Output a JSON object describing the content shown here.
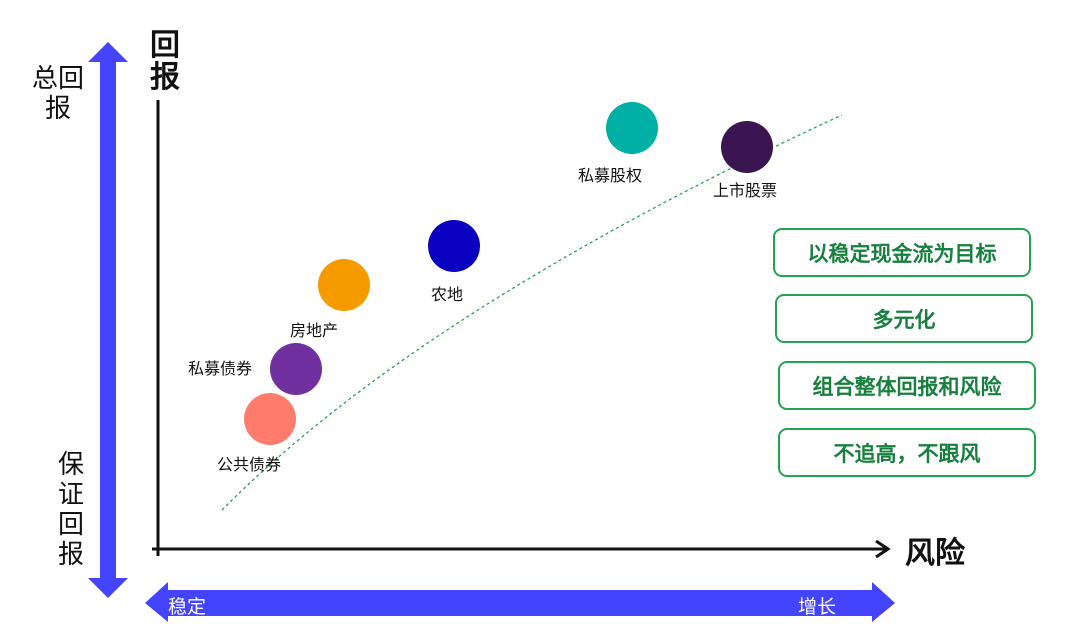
{
  "y_axis_title": "回报",
  "x_axis_title": "风险",
  "left_scale": {
    "top_label": "总回报",
    "bottom_label": "保证回报",
    "color": "#4444ff"
  },
  "bottom_scale": {
    "left_label": "稳定",
    "right_label": "增长",
    "color": "#4444ff"
  },
  "assets": [
    {
      "label": "公共债券",
      "color": "#ff7b6b"
    },
    {
      "label": "私募债券",
      "color": "#7030a0"
    },
    {
      "label": "房地产",
      "color": "#f59b00"
    },
    {
      "label": "农地",
      "color": "#0a00c0"
    },
    {
      "label": "私募股权",
      "color": "#00b0a4"
    },
    {
      "label": "上市股票",
      "color": "#3a1552"
    }
  ],
  "trend_line_color": "#22a552",
  "principles": [
    "以稳定现金流为目标",
    "多元化",
    "组合整体回报和风险",
    "不追高，不跟风"
  ],
  "principle_color": "#17803f"
}
